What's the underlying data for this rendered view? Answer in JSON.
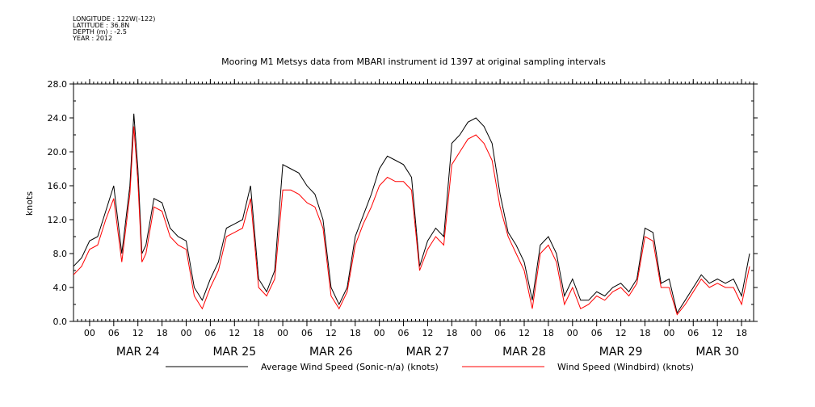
{
  "header": {
    "lines": [
      "LONGITUDE : 122W(-122)",
      "LATITUDE : 36.8N",
      "DEPTH (m) : -2.5",
      "YEAR : 2012"
    ]
  },
  "chart_data": {
    "type": "line",
    "title": "Mooring M1 Metsys data from MBARI instrument id 1397 at original sampling intervals",
    "ylabel": "knots",
    "xlabel": "",
    "ylim": [
      0,
      28
    ],
    "yticks": [
      "0.0",
      "4.0",
      "8.0",
      "12.0",
      "16.0",
      "20.0",
      "24.0",
      "28.0"
    ],
    "xlim_hours": [
      -4,
      165
    ],
    "hour_ticks": [
      "00",
      "06",
      "12",
      "18",
      "00",
      "06",
      "12",
      "18",
      "00",
      "06",
      "12",
      "18",
      "00",
      "06",
      "12",
      "18",
      "00",
      "06",
      "12",
      "18",
      "00",
      "06",
      "12",
      "18",
      "00",
      "06",
      "12",
      "18"
    ],
    "day_labels": [
      "MAR 24",
      "MAR 25",
      "MAR 26",
      "MAR 27",
      "MAR 28",
      "MAR 29",
      "MAR 30"
    ],
    "grid": false,
    "legend_position": "bottom",
    "x_hours": [
      -4,
      -2,
      0,
      2,
      4,
      6,
      8,
      9,
      10,
      11,
      12,
      13,
      14,
      16,
      18,
      20,
      22,
      24,
      26,
      28,
      30,
      32,
      34,
      36,
      38,
      40,
      42,
      44,
      46,
      48,
      50,
      52,
      54,
      56,
      58,
      60,
      62,
      64,
      66,
      68,
      70,
      72,
      74,
      76,
      78,
      80,
      82,
      84,
      86,
      88,
      90,
      92,
      94,
      96,
      98,
      100,
      102,
      104,
      106,
      108,
      110,
      112,
      114,
      116,
      118,
      120,
      122,
      124,
      126,
      128,
      130,
      132,
      134,
      136,
      138,
      140,
      142,
      144,
      146,
      148,
      150,
      152,
      154,
      156,
      158,
      160,
      162,
      164
    ],
    "series": [
      {
        "name": "Average Wind Speed (Sonic-n/a) (knots)",
        "color": "#000000",
        "values": [
          6.5,
          7.5,
          9.5,
          10.0,
          13.0,
          16.0,
          8.0,
          12.0,
          16.0,
          24.5,
          18.0,
          8.0,
          9.0,
          14.5,
          14.0,
          11.0,
          10.0,
          9.5,
          4.0,
          2.5,
          5.0,
          7.0,
          11.0,
          11.5,
          12.0,
          16.0,
          5.0,
          3.5,
          6.0,
          18.5,
          18.0,
          17.5,
          16.0,
          15.0,
          12.0,
          4.0,
          2.0,
          4.0,
          10.0,
          12.5,
          15.0,
          18.0,
          19.5,
          19.0,
          18.5,
          17.0,
          6.5,
          9.5,
          11.0,
          10.0,
          21.0,
          22.0,
          23.5,
          24.0,
          23.0,
          21.0,
          15.0,
          10.5,
          9.0,
          7.0,
          2.5,
          9.0,
          10.0,
          8.0,
          3.0,
          5.0,
          2.5,
          2.5,
          3.5,
          3.0,
          4.0,
          4.5,
          3.5,
          5.0,
          11.0,
          10.5,
          4.5,
          5.0,
          1.0,
          2.5,
          4.0,
          5.5,
          4.5,
          5.0,
          4.5,
          5.0,
          3.0,
          8.0
        ]
      },
      {
        "name": "Wind Speed (Windbird) (knots)",
        "color": "#ff0000",
        "values": [
          5.5,
          6.5,
          8.5,
          9.0,
          12.0,
          14.5,
          7.0,
          11.0,
          15.0,
          23.0,
          16.5,
          7.0,
          8.0,
          13.5,
          13.0,
          10.0,
          9.0,
          8.5,
          3.0,
          1.5,
          4.0,
          6.0,
          10.0,
          10.5,
          11.0,
          14.5,
          4.0,
          3.0,
          5.0,
          15.5,
          15.5,
          15.0,
          14.0,
          13.5,
          11.0,
          3.0,
          1.5,
          3.5,
          9.0,
          11.5,
          13.5,
          16.0,
          17.0,
          16.5,
          16.5,
          15.5,
          6.0,
          8.5,
          10.0,
          9.0,
          18.5,
          20.0,
          21.5,
          22.0,
          21.0,
          19.0,
          13.5,
          10.0,
          8.0,
          6.0,
          1.5,
          8.0,
          9.0,
          7.0,
          2.0,
          4.0,
          1.5,
          2.0,
          3.0,
          2.5,
          3.5,
          4.0,
          3.0,
          4.5,
          10.0,
          9.5,
          4.0,
          4.0,
          0.8,
          2.0,
          3.5,
          5.0,
          4.0,
          4.5,
          4.0,
          4.0,
          2.0,
          6.5
        ]
      }
    ]
  }
}
